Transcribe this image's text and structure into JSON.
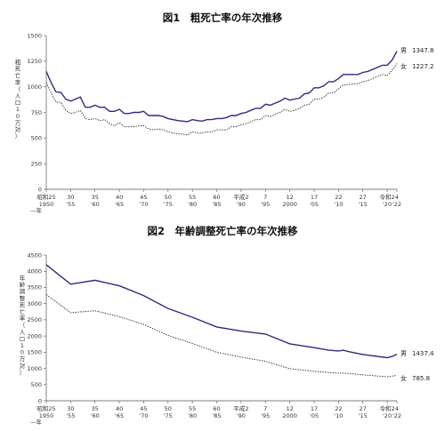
{
  "chart_data": [
    {
      "type": "line",
      "title": "図1　粗死亡率の年次推移",
      "ylabel": "粗死亡率（人口10万対）",
      "xlabel": "年",
      "ylim": [
        0,
        1500
      ],
      "yticks": [
        "0",
        "250",
        "500",
        "750",
        "1000",
        "1250",
        "1500"
      ],
      "xlim": [
        1950,
        2022
      ],
      "x_ticks": [
        {
          "x": 1950,
          "era": "昭和25",
          "year": "1950"
        },
        {
          "x": 1955,
          "era": "30",
          "year": "'55"
        },
        {
          "x": 1960,
          "era": "35",
          "year": "'60"
        },
        {
          "x": 1965,
          "era": "40",
          "year": "'65"
        },
        {
          "x": 1970,
          "era": "45",
          "year": "'70"
        },
        {
          "x": 1975,
          "era": "50",
          "year": "'75"
        },
        {
          "x": 1980,
          "era": "55",
          "year": "'80"
        },
        {
          "x": 1985,
          "era": "60",
          "year": "'85"
        },
        {
          "x": 1990,
          "era": "平成2",
          "year": "'90"
        },
        {
          "x": 1995,
          "era": "7",
          "year": "'95"
        },
        {
          "x": 2000,
          "era": "12",
          "year": "2000"
        },
        {
          "x": 2005,
          "era": "17",
          "year": "'05"
        },
        {
          "x": 2010,
          "era": "22",
          "year": "'10"
        },
        {
          "x": 2015,
          "era": "27",
          "year": "'15"
        },
        {
          "x": 2020,
          "era": "令和2",
          "year": "'20"
        },
        {
          "x": 2022,
          "era": "4",
          "year": "'22"
        }
      ],
      "series": [
        {
          "name": "男",
          "end_value": "1347.8",
          "style": "solid",
          "color": "#2b2d7a",
          "points": [
            [
              1950,
              1150
            ],
            [
              1951,
              1040
            ],
            [
              1952,
              950
            ],
            [
              1953,
              945
            ],
            [
              1954,
              880
            ],
            [
              1955,
              860
            ],
            [
              1956,
              880
            ],
            [
              1957,
              900
            ],
            [
              1958,
              800
            ],
            [
              1959,
              800
            ],
            [
              1960,
              820
            ],
            [
              1961,
              800
            ],
            [
              1962,
              800
            ],
            [
              1963,
              760
            ],
            [
              1964,
              760
            ],
            [
              1965,
              780
            ],
            [
              1966,
              740
            ],
            [
              1967,
              740
            ],
            [
              1968,
              750
            ],
            [
              1969,
              750
            ],
            [
              1970,
              760
            ],
            [
              1971,
              720
            ],
            [
              1972,
              720
            ],
            [
              1973,
              720
            ],
            [
              1974,
              710
            ],
            [
              1975,
              690
            ],
            [
              1976,
              680
            ],
            [
              1977,
              670
            ],
            [
              1978,
              665
            ],
            [
              1979,
              660
            ],
            [
              1980,
              680
            ],
            [
              1981,
              670
            ],
            [
              1982,
              665
            ],
            [
              1983,
              680
            ],
            [
              1984,
              680
            ],
            [
              1985,
              690
            ],
            [
              1986,
              690
            ],
            [
              1987,
              700
            ],
            [
              1988,
              720
            ],
            [
              1989,
              720
            ],
            [
              1990,
              740
            ],
            [
              1991,
              750
            ],
            [
              1992,
              770
            ],
            [
              1993,
              790
            ],
            [
              1994,
              790
            ],
            [
              1995,
              830
            ],
            [
              1996,
              820
            ],
            [
              1997,
              840
            ],
            [
              1998,
              860
            ],
            [
              1999,
              890
            ],
            [
              2000,
              870
            ],
            [
              2001,
              880
            ],
            [
              2002,
              890
            ],
            [
              2003,
              930
            ],
            [
              2004,
              940
            ],
            [
              2005,
              990
            ],
            [
              2006,
              990
            ],
            [
              2007,
              1010
            ],
            [
              2008,
              1050
            ],
            [
              2009,
              1050
            ],
            [
              2010,
              1080
            ],
            [
              2011,
              1120
            ],
            [
              2012,
              1120
            ],
            [
              2013,
              1120
            ],
            [
              2014,
              1120
            ],
            [
              2015,
              1140
            ],
            [
              2016,
              1150
            ],
            [
              2017,
              1170
            ],
            [
              2018,
              1190
            ],
            [
              2019,
              1210
            ],
            [
              2020,
              1210
            ],
            [
              2021,
              1260
            ],
            [
              2022,
              1347.8
            ]
          ]
        },
        {
          "name": "女",
          "end_value": "1227.2",
          "style": "dotted",
          "color": "#333333",
          "points": [
            [
              1950,
              1040
            ],
            [
              1951,
              940
            ],
            [
              1952,
              850
            ],
            [
              1953,
              850
            ],
            [
              1954,
              770
            ],
            [
              1955,
              740
            ],
            [
              1956,
              750
            ],
            [
              1957,
              770
            ],
            [
              1958,
              690
            ],
            [
              1959,
              680
            ],
            [
              1960,
              690
            ],
            [
              1961,
              670
            ],
            [
              1962,
              680
            ],
            [
              1963,
              640
            ],
            [
              1964,
              620
            ],
            [
              1965,
              650
            ],
            [
              1966,
              610
            ],
            [
              1967,
              610
            ],
            [
              1968,
              610
            ],
            [
              1969,
              620
            ],
            [
              1970,
              620
            ],
            [
              1971,
              590
            ],
            [
              1972,
              580
            ],
            [
              1973,
              590
            ],
            [
              1974,
              580
            ],
            [
              1975,
              560
            ],
            [
              1976,
              550
            ],
            [
              1977,
              540
            ],
            [
              1978,
              540
            ],
            [
              1979,
              530
            ],
            [
              1980,
              560
            ],
            [
              1981,
              550
            ],
            [
              1982,
              550
            ],
            [
              1983,
              560
            ],
            [
              1984,
              560
            ],
            [
              1985,
              580
            ],
            [
              1986,
              580
            ],
            [
              1987,
              580
            ],
            [
              1988,
              610
            ],
            [
              1989,
              610
            ],
            [
              1990,
              630
            ],
            [
              1991,
              640
            ],
            [
              1992,
              660
            ],
            [
              1993,
              680
            ],
            [
              1994,
              680
            ],
            [
              1995,
              720
            ],
            [
              1996,
              710
            ],
            [
              1997,
              730
            ],
            [
              1998,
              750
            ],
            [
              1999,
              780
            ],
            [
              2000,
              760
            ],
            [
              2001,
              770
            ],
            [
              2002,
              790
            ],
            [
              2003,
              820
            ],
            [
              2004,
              830
            ],
            [
              2005,
              880
            ],
            [
              2006,
              880
            ],
            [
              2007,
              900
            ],
            [
              2008,
              940
            ],
            [
              2009,
              940
            ],
            [
              2010,
              980
            ],
            [
              2011,
              1020
            ],
            [
              2012,
              1020
            ],
            [
              2013,
              1030
            ],
            [
              2014,
              1030
            ],
            [
              2015,
              1050
            ],
            [
              2016,
              1060
            ],
            [
              2017,
              1080
            ],
            [
              2018,
              1100
            ],
            [
              2019,
              1120
            ],
            [
              2020,
              1110
            ],
            [
              2021,
              1160
            ],
            [
              2022,
              1227.2
            ]
          ]
        }
      ]
    },
    {
      "type": "line",
      "title": "図2　年齢調整死亡率の年次推移",
      "ylabel": "年齢調整死亡率（人口10万対）",
      "xlabel": "年",
      "ylim": [
        0,
        4500
      ],
      "yticks": [
        "0",
        "500",
        "1000",
        "1500",
        "2000",
        "2500",
        "3000",
        "3500",
        "4000",
        "4500"
      ],
      "xlim": [
        1950,
        2022
      ],
      "x_ticks": [
        {
          "x": 1950,
          "era": "昭和25",
          "year": "1950"
        },
        {
          "x": 1955,
          "era": "30",
          "year": "'55"
        },
        {
          "x": 1960,
          "era": "35",
          "year": "'60"
        },
        {
          "x": 1965,
          "era": "40",
          "year": "'65"
        },
        {
          "x": 1970,
          "era": "45",
          "year": "'70"
        },
        {
          "x": 1975,
          "era": "50",
          "year": "'75"
        },
        {
          "x": 1980,
          "era": "55",
          "year": "'80"
        },
        {
          "x": 1985,
          "era": "60",
          "year": "'85"
        },
        {
          "x": 1990,
          "era": "平成2",
          "year": "'90"
        },
        {
          "x": 1995,
          "era": "7",
          "year": "'95"
        },
        {
          "x": 2000,
          "era": "12",
          "year": "2000"
        },
        {
          "x": 2005,
          "era": "17",
          "year": "'05"
        },
        {
          "x": 2010,
          "era": "22",
          "year": "'10"
        },
        {
          "x": 2015,
          "era": "27",
          "year": "'15"
        },
        {
          "x": 2020,
          "era": "令和2",
          "year": "'20"
        },
        {
          "x": 2022,
          "era": "4",
          "year": "'22"
        }
      ],
      "series": [
        {
          "name": "男",
          "end_value": "1437.4",
          "style": "solid",
          "color": "#2b2d7a",
          "points": [
            [
              1950,
              4200
            ],
            [
              1955,
              3600
            ],
            [
              1960,
              3720
            ],
            [
              1965,
              3550
            ],
            [
              1970,
              3250
            ],
            [
              1975,
              2850
            ],
            [
              1980,
              2580
            ],
            [
              1985,
              2280
            ],
            [
              1990,
              2150
            ],
            [
              1995,
              2060
            ],
            [
              2000,
              1760
            ],
            [
              2005,
              1640
            ],
            [
              2008,
              1560
            ],
            [
              2010,
              1540
            ],
            [
              2011,
              1560
            ],
            [
              2012,
              1520
            ],
            [
              2015,
              1430
            ],
            [
              2020,
              1330
            ],
            [
              2021,
              1370
            ],
            [
              2022,
              1437.4
            ]
          ]
        },
        {
          "name": "女",
          "end_value": "785.8",
          "style": "dotted",
          "color": "#333333",
          "points": [
            [
              1950,
              3280
            ],
            [
              1955,
              2720
            ],
            [
              1960,
              2780
            ],
            [
              1965,
              2600
            ],
            [
              1970,
              2360
            ],
            [
              1975,
              2020
            ],
            [
              1980,
              1770
            ],
            [
              1985,
              1500
            ],
            [
              1990,
              1350
            ],
            [
              1995,
              1220
            ],
            [
              2000,
              990
            ],
            [
              2005,
              910
            ],
            [
              2010,
              850
            ],
            [
              2011,
              860
            ],
            [
              2015,
              800
            ],
            [
              2020,
              740
            ],
            [
              2021,
              760
            ],
            [
              2022,
              785.8
            ]
          ]
        }
      ]
    }
  ]
}
